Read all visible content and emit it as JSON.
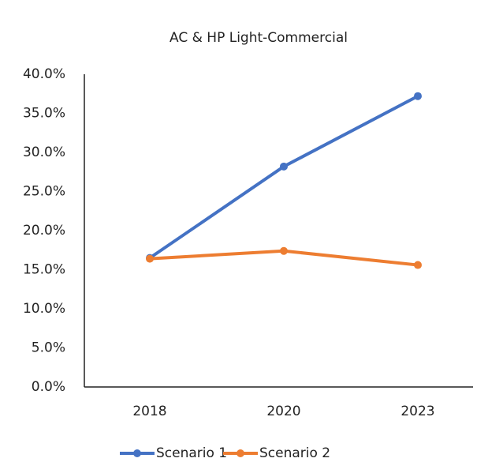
{
  "chart_data": {
    "type": "line",
    "title": "AC & HP  Light-Commercial",
    "categories": [
      "2018",
      "2020",
      "2023"
    ],
    "series": [
      {
        "name": "Scenario 1",
        "color": "#4472c4",
        "values": [
          16.5,
          28.2,
          37.2
        ]
      },
      {
        "name": "Scenario 2",
        "color": "#ed7d31",
        "values": [
          16.4,
          17.4,
          15.6
        ]
      }
    ],
    "ylim": [
      0,
      40
    ],
    "yticks": [
      {
        "value": 0,
        "label": "0.0%"
      },
      {
        "value": 5,
        "label": "5.0%"
      },
      {
        "value": 10,
        "label": "10.0%"
      },
      {
        "value": 15,
        "label": "15.0%"
      },
      {
        "value": 20,
        "label": "20.0%"
      },
      {
        "value": 25,
        "label": "25.0%"
      },
      {
        "value": 30,
        "label": "30.0%"
      },
      {
        "value": 35,
        "label": "35.0%"
      },
      {
        "value": 40,
        "label": "40.0%"
      }
    ],
    "grid": false,
    "legend": "bottom"
  }
}
